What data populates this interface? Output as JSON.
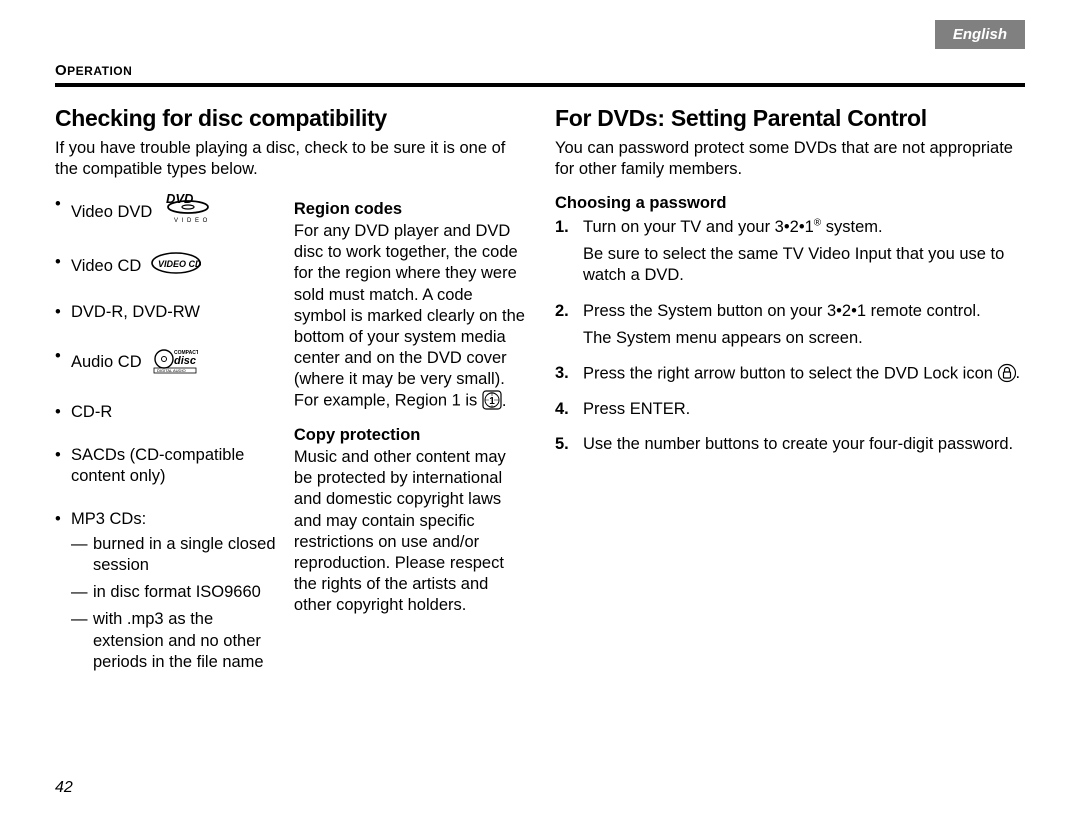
{
  "language_tab": "English",
  "section_label": "OPERATION",
  "page_number": "42",
  "left": {
    "heading": "Checking for disc compatibility",
    "intro": "If you have trouble playing a disc, check to be sure it is one of the compatible types below.",
    "discs": {
      "video_dvd": "Video DVD",
      "video_cd": "Video CD",
      "dvd_r_rw": "DVD-R, DVD-RW",
      "audio_cd": "Audio CD",
      "cd_r": "CD-R",
      "sacd": "SACDs (CD-compatible content only)",
      "mp3_label": "MP3 CDs:",
      "mp3_sub": {
        "a": "burned in a single closed session",
        "b": "in disc format ISO9660",
        "c": "with .mp3 as the extension and no other periods in the file name"
      }
    },
    "region_codes": {
      "heading": "Region codes",
      "body_a": "For any DVD player and DVD disc to work together, the code for the region where they were sold must match. A code symbol is marked clearly on the bottom of your system media center and on the DVD cover (where it may be very small). For example, Region 1 is ",
      "body_b": "."
    },
    "copy_protection": {
      "heading": "Copy protection",
      "body": "Music and other content may be protected by international and domestic copyright laws and may contain specific restrictions on use and/or reproduction. Please respect the rights of the artists and other copyright holders."
    }
  },
  "right": {
    "heading": "For DVDs: Setting Parental Control",
    "intro": "You can password protect some DVDs that are not appropriate for other family members.",
    "choosing_heading": "Choosing a password",
    "steps": {
      "s1a": "Turn on your TV and your 3•2•1",
      "s1b": " system.",
      "s1_follow": "Be sure to select the same TV Video Input that you use to watch a DVD.",
      "s2": "Press the System button on your 3•2•1 remote control.",
      "s2_follow": "The System menu appears on screen.",
      "s3a": "Press the right arrow button to select the DVD Lock icon ",
      "s3b": ".",
      "s4": "Press ENTER.",
      "s5": "Use the number buttons to create your four-digit password."
    },
    "step_numbers": {
      "n1": "1.",
      "n2": "2.",
      "n3": "3.",
      "n4": "4.",
      "n5": "5."
    }
  },
  "icons": {
    "dvd_video": "dvd-video-logo",
    "video_cd": "video-cd-logo",
    "compact_disc": "compact-disc-digital-audio-logo",
    "region1": "region-1-globe",
    "lock": "padlock"
  },
  "colors": {
    "text": "#000000",
    "background": "#ffffff",
    "tab_bg": "#808080",
    "tab_text": "#ffffff",
    "rule": "#000000"
  }
}
